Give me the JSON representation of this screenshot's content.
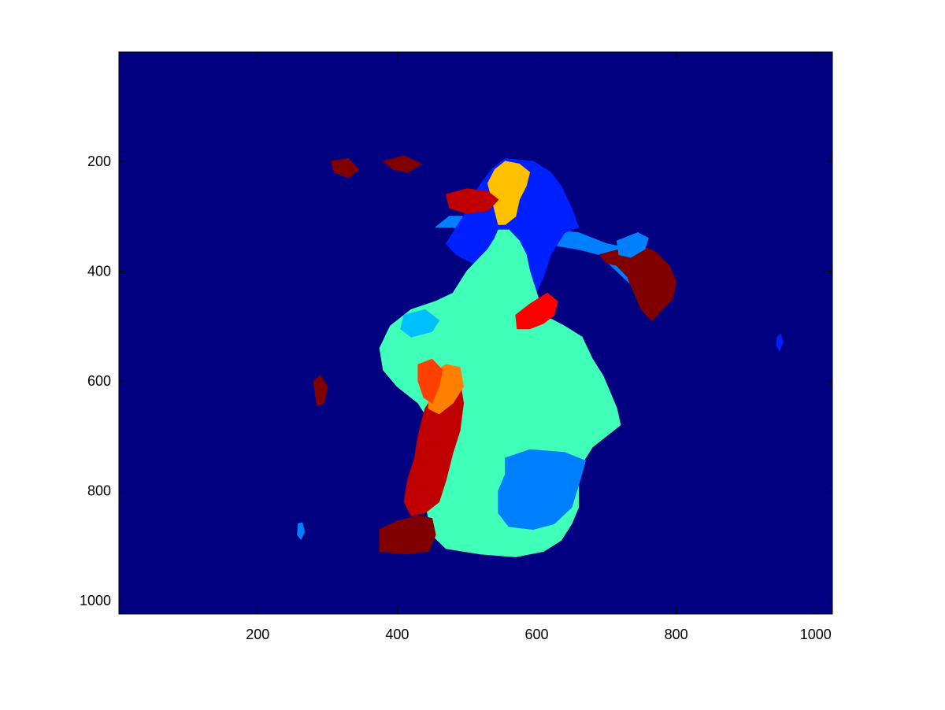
{
  "chart_data": {
    "type": "heatmap",
    "title": "",
    "xlabel": "",
    "ylabel": "",
    "xlim": [
      1,
      1024
    ],
    "ylim": [
      1,
      1024
    ],
    "y_reversed": true,
    "x_ticks": [
      "200",
      "400",
      "600",
      "800",
      "1000"
    ],
    "y_ticks": [
      "200",
      "400",
      "600",
      "800",
      "1000"
    ],
    "grid": false,
    "legend": "none",
    "background_color": "#000080",
    "colormap": "jet",
    "regions": [
      {
        "label": "light-blue region (upper body outline)",
        "color": "#0080ff",
        "polygon": [
          [
            455,
            320
          ],
          [
            475,
            300
          ],
          [
            555,
            300
          ],
          [
            575,
            320
          ],
          [
            660,
            330
          ],
          [
            700,
            350
          ],
          [
            740,
            360
          ],
          [
            760,
            380
          ],
          [
            760,
            420
          ],
          [
            740,
            430
          ],
          [
            715,
            400
          ],
          [
            690,
            370
          ],
          [
            660,
            360
          ],
          [
            635,
            355
          ],
          [
            600,
            345
          ],
          [
            575,
            335
          ],
          [
            545,
            330
          ],
          [
            520,
            335
          ],
          [
            480,
            320
          ]
        ]
      },
      {
        "label": "blue region (hair)",
        "color": "#0020ff",
        "polygon": [
          [
            470,
            350
          ],
          [
            490,
            310
          ],
          [
            505,
            280
          ],
          [
            515,
            250
          ],
          [
            535,
            215
          ],
          [
            555,
            195
          ],
          [
            595,
            200
          ],
          [
            620,
            220
          ],
          [
            635,
            245
          ],
          [
            650,
            285
          ],
          [
            660,
            320
          ],
          [
            640,
            330
          ],
          [
            620,
            370
          ],
          [
            610,
            410
          ],
          [
            595,
            450
          ],
          [
            570,
            480
          ],
          [
            555,
            470
          ],
          [
            545,
            440
          ],
          [
            530,
            420
          ],
          [
            515,
            390
          ],
          [
            500,
            380
          ],
          [
            485,
            370
          ]
        ]
      },
      {
        "label": "yellow region (face)",
        "color": "#ffc000",
        "polygon": [
          [
            540,
            215
          ],
          [
            555,
            200
          ],
          [
            575,
            205
          ],
          [
            590,
            220
          ],
          [
            585,
            245
          ],
          [
            575,
            270
          ],
          [
            570,
            300
          ],
          [
            555,
            315
          ],
          [
            545,
            315
          ],
          [
            540,
            290
          ],
          [
            535,
            265
          ],
          [
            530,
            240
          ]
        ]
      },
      {
        "label": "aquamarine region (body)",
        "color": "#40ffb8",
        "polygon": [
          [
            480,
            440
          ],
          [
            500,
            400
          ],
          [
            515,
            380
          ],
          [
            530,
            360
          ],
          [
            540,
            340
          ],
          [
            545,
            325
          ],
          [
            560,
            325
          ],
          [
            575,
            345
          ],
          [
            585,
            370
          ],
          [
            590,
            400
          ],
          [
            600,
            440
          ],
          [
            610,
            480
          ],
          [
            640,
            500
          ],
          [
            665,
            520
          ],
          [
            680,
            560
          ],
          [
            695,
            590
          ],
          [
            705,
            620
          ],
          [
            715,
            650
          ],
          [
            720,
            680
          ],
          [
            700,
            700
          ],
          [
            680,
            720
          ],
          [
            665,
            750
          ],
          [
            660,
            790
          ],
          [
            660,
            830
          ],
          [
            650,
            860
          ],
          [
            635,
            890
          ],
          [
            610,
            910
          ],
          [
            570,
            920
          ],
          [
            520,
            915
          ],
          [
            470,
            905
          ],
          [
            450,
            880
          ],
          [
            445,
            850
          ],
          [
            440,
            820
          ],
          [
            445,
            790
          ],
          [
            450,
            760
          ],
          [
            455,
            720
          ],
          [
            450,
            680
          ],
          [
            430,
            640
          ],
          [
            400,
            610
          ],
          [
            380,
            580
          ],
          [
            375,
            540
          ],
          [
            390,
            500
          ],
          [
            420,
            470
          ],
          [
            455,
            455
          ]
        ]
      },
      {
        "label": "blue region (lap)",
        "color": "#0080ff",
        "polygon": [
          [
            555,
            740
          ],
          [
            590,
            725
          ],
          [
            640,
            730
          ],
          [
            670,
            745
          ],
          [
            660,
            790
          ],
          [
            650,
            830
          ],
          [
            625,
            860
          ],
          [
            595,
            870
          ],
          [
            560,
            865
          ],
          [
            545,
            840
          ],
          [
            545,
            800
          ],
          [
            555,
            770
          ]
        ]
      },
      {
        "label": "dark-red region (left leg)",
        "color": "#c00000",
        "polygon": [
          [
            440,
            650
          ],
          [
            460,
            610
          ],
          [
            475,
            590
          ],
          [
            490,
            600
          ],
          [
            495,
            640
          ],
          [
            490,
            690
          ],
          [
            480,
            730
          ],
          [
            470,
            780
          ],
          [
            460,
            820
          ],
          [
            440,
            840
          ],
          [
            420,
            845
          ],
          [
            410,
            820
          ],
          [
            415,
            780
          ],
          [
            425,
            740
          ],
          [
            430,
            700
          ]
        ]
      },
      {
        "label": "orange region",
        "color": "#ff8000",
        "polygon": [
          [
            445,
            590
          ],
          [
            470,
            570
          ],
          [
            490,
            575
          ],
          [
            495,
            610
          ],
          [
            480,
            640
          ],
          [
            460,
            660
          ],
          [
            445,
            650
          ]
        ]
      },
      {
        "label": "red-orange region",
        "color": "#ff4000",
        "polygon": [
          [
            430,
            570
          ],
          [
            450,
            560
          ],
          [
            465,
            580
          ],
          [
            460,
            610
          ],
          [
            450,
            640
          ],
          [
            438,
            630
          ],
          [
            430,
            600
          ]
        ]
      },
      {
        "label": "dark-maroon region (foot)",
        "color": "#800000",
        "polygon": [
          [
            375,
            870
          ],
          [
            400,
            855
          ],
          [
            430,
            845
          ],
          [
            450,
            850
          ],
          [
            455,
            880
          ],
          [
            445,
            910
          ],
          [
            410,
            915
          ],
          [
            375,
            910
          ]
        ]
      },
      {
        "label": "red region (hand)",
        "color": "#ff0000",
        "polygon": [
          [
            570,
            480
          ],
          [
            590,
            460
          ],
          [
            615,
            440
          ],
          [
            630,
            455
          ],
          [
            625,
            480
          ],
          [
            610,
            495
          ],
          [
            590,
            505
          ],
          [
            572,
            505
          ]
        ]
      },
      {
        "label": "maroon region (right arm)",
        "color": "#800000",
        "polygon": [
          [
            690,
            370
          ],
          [
            720,
            360
          ],
          [
            745,
            350
          ],
          [
            770,
            365
          ],
          [
            790,
            390
          ],
          [
            800,
            420
          ],
          [
            795,
            450
          ],
          [
            780,
            470
          ],
          [
            765,
            490
          ],
          [
            750,
            470
          ],
          [
            740,
            440
          ],
          [
            730,
            410
          ],
          [
            715,
            390
          ],
          [
            700,
            385
          ]
        ]
      },
      {
        "label": "light-blue region (right shoulder)",
        "color": "#0080ff",
        "polygon": [
          [
            715,
            345
          ],
          [
            745,
            330
          ],
          [
            760,
            340
          ],
          [
            755,
            360
          ],
          [
            735,
            375
          ],
          [
            718,
            370
          ]
        ]
      },
      {
        "label": "cyan region",
        "color": "#00c0ff",
        "polygon": [
          [
            410,
            480
          ],
          [
            440,
            470
          ],
          [
            460,
            490
          ],
          [
            450,
            510
          ],
          [
            420,
            520
          ],
          [
            405,
            505
          ]
        ]
      },
      {
        "label": "maroon blob (left)",
        "color": "#800000",
        "polygon": [
          [
            305,
            200
          ],
          [
            330,
            195
          ],
          [
            345,
            215
          ],
          [
            330,
            230
          ],
          [
            310,
            220
          ]
        ]
      },
      {
        "label": "maroon blob (top)",
        "color": "#800000",
        "polygon": [
          [
            380,
            200
          ],
          [
            410,
            190
          ],
          [
            435,
            205
          ],
          [
            415,
            220
          ],
          [
            395,
            215
          ]
        ]
      },
      {
        "label": "maroon blob (lower left)",
        "color": "#800000",
        "polygon": [
          [
            280,
            600
          ],
          [
            290,
            590
          ],
          [
            300,
            610
          ],
          [
            295,
            640
          ],
          [
            285,
            645
          ]
        ]
      },
      {
        "label": "red blob (left shoulder)",
        "color": "#c00000",
        "polygon": [
          [
            470,
            260
          ],
          [
            500,
            250
          ],
          [
            530,
            255
          ],
          [
            545,
            270
          ],
          [
            530,
            290
          ],
          [
            500,
            295
          ],
          [
            475,
            285
          ]
        ]
      },
      {
        "label": "small blue blob",
        "color": "#0080ff",
        "polygon": [
          [
            258,
            860
          ],
          [
            264,
            858
          ],
          [
            267,
            875
          ],
          [
            262,
            888
          ],
          [
            257,
            880
          ]
        ]
      },
      {
        "label": "small blue blob (right)",
        "color": "#0020ff",
        "polygon": [
          [
            945,
            520
          ],
          [
            950,
            515
          ],
          [
            953,
            530
          ],
          [
            948,
            545
          ],
          [
            944,
            535
          ]
        ]
      }
    ]
  }
}
